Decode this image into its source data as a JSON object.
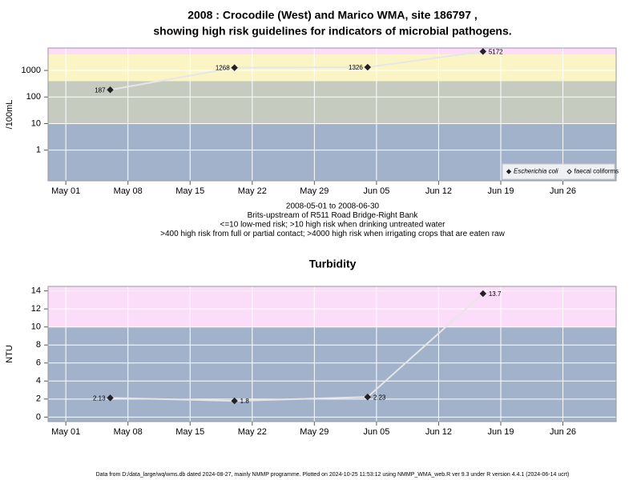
{
  "chart_data": [
    {
      "type": "line",
      "title_lines": [
        "2008 : Crocodile (West) and Marico WMA, site 186797 ,",
        "showing high risk guidelines for indicators of microbial pathogens."
      ],
      "y_label": "/100mL",
      "notes": [
        "2008-05-01 to 2008-06-30",
        "Brits-upstream of R511 Road Bridge-Right Bank",
        "<=10 low-med risk; >10 high risk when drinking untreated water",
        ">400 high risk from full or partial contact; >4000 high risk when irrigating crops that are eaten raw"
      ],
      "x": [
        "May 06",
        "May 20",
        "Jun 04",
        "Jun 17"
      ],
      "series": [
        {
          "name": "Escherichia coli",
          "color": "#222222",
          "marker": "filled",
          "font_style": "italic",
          "values": [
            187,
            1268,
            1326,
            5172
          ]
        },
        {
          "name": "faecal coliforms",
          "color": "#222222",
          "marker": "open",
          "font_style": "normal",
          "values": [
            null,
            null,
            null,
            null
          ]
        }
      ],
      "line_color": "#e6e6e6",
      "log_y": true,
      "ylim": [
        0.07,
        7000
      ],
      "yticks": [
        1,
        10,
        100,
        1000
      ],
      "xlim": [
        "Apr 29",
        "Jul 02"
      ],
      "xticks": [
        "May 01",
        "May 08",
        "May 15",
        "May 22",
        "May 29",
        "Jun 05",
        "Jun 12",
        "Jun 19",
        "Jun 26"
      ],
      "thresholds": [
        10,
        400,
        4000
      ],
      "band_colors": [
        "#a2b2cb",
        "#c5ccbf",
        "#fbf5c6",
        "#fbdcf9"
      ],
      "grid": true,
      "legend": "lower right"
    },
    {
      "type": "line",
      "title_lines": [
        "Turbidity"
      ],
      "y_label": "NTU",
      "x": [
        "May 06",
        "May 20",
        "Jun 04",
        "Jun 17"
      ],
      "series": [
        {
          "name": "Turbidity",
          "color": "#222222",
          "marker": "filled",
          "values": [
            2.13,
            1.8,
            2.23,
            13.7
          ]
        }
      ],
      "line_color": "#e6e6e6",
      "log_y": false,
      "ylim": [
        -0.5,
        14.5
      ],
      "yticks": [
        0,
        2,
        4,
        6,
        8,
        10,
        12,
        14
      ],
      "xlim": [
        "Apr 29",
        "Jul 02"
      ],
      "xticks": [
        "May 01",
        "May 08",
        "May 15",
        "May 22",
        "May 29",
        "Jun 05",
        "Jun 12",
        "Jun 19",
        "Jun 26"
      ],
      "thresholds": [
        10
      ],
      "band_colors": [
        "#a2b2cb",
        "#fbdcf9"
      ],
      "grid": true
    }
  ],
  "footer": "Data from D:/data_large/wq/wms.db dated 2024-08-27, mainly NMMP programme. Plotted on 2024-10-25 11:53:12 using NMMP_WMA_web.R ver 9.3 under R version 4.4.1 (2024-06-14 ucrt)"
}
